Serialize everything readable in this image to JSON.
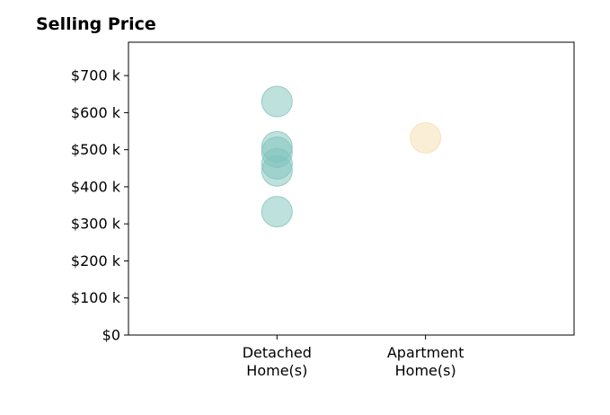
{
  "chart_data": {
    "type": "scatter",
    "title": "Selling Price",
    "xlabel": "",
    "ylabel": "",
    "categories": [
      [
        "Detached",
        "Home(s)"
      ],
      [
        "Apartment",
        "Home(s)"
      ]
    ],
    "xlim": [
      -1,
      2
    ],
    "ylim": [
      0,
      790000
    ],
    "yticks": [
      0,
      100000,
      200000,
      300000,
      400000,
      500000,
      600000,
      700000
    ],
    "ytick_labels": [
      "$0",
      "$100 k",
      "$200 k",
      "$300 k",
      "$400 k",
      "$500 k",
      "$600 k",
      "$700 k"
    ],
    "grid": false,
    "series": [
      {
        "category_index": 0,
        "color": "#7fc4bc",
        "values": [
          630000,
          508000,
          493000,
          462000,
          443000,
          333000
        ]
      },
      {
        "category_index": 1,
        "color": "#f6deb0",
        "values": [
          532000
        ]
      }
    ]
  }
}
